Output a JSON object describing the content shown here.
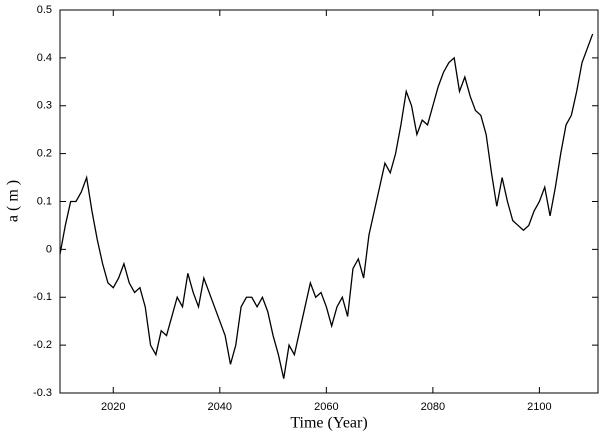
{
  "chart_data": {
    "type": "line",
    "x_label": "Time (Year)",
    "y_label": "a ( m )",
    "x": [
      2010,
      2011,
      2012,
      2013,
      2014,
      2015,
      2016,
      2017,
      2018,
      2019,
      2020,
      2021,
      2022,
      2023,
      2024,
      2025,
      2026,
      2027,
      2028,
      2029,
      2030,
      2031,
      2032,
      2033,
      2034,
      2035,
      2036,
      2037,
      2038,
      2039,
      2040,
      2041,
      2042,
      2043,
      2044,
      2045,
      2046,
      2047,
      2048,
      2049,
      2050,
      2051,
      2052,
      2053,
      2054,
      2055,
      2056,
      2057,
      2058,
      2059,
      2060,
      2061,
      2062,
      2063,
      2064,
      2065,
      2066,
      2067,
      2068,
      2069,
      2070,
      2071,
      2072,
      2073,
      2074,
      2075,
      2076,
      2077,
      2078,
      2079,
      2080,
      2081,
      2082,
      2083,
      2084,
      2085,
      2086,
      2087,
      2088,
      2089,
      2090,
      2091,
      2092,
      2093,
      2094,
      2095,
      2096,
      2097,
      2098,
      2099,
      2100,
      2101,
      2102,
      2103,
      2104,
      2105,
      2106,
      2107,
      2108,
      2109,
      2110
    ],
    "series": [
      {
        "color": "#000000",
        "values": [
          -0.01,
          0.05,
          0.1,
          0.1,
          0.12,
          0.15,
          0.08,
          0.02,
          -0.03,
          -0.07,
          -0.08,
          -0.06,
          -0.03,
          -0.07,
          -0.09,
          -0.08,
          -0.12,
          -0.2,
          -0.22,
          -0.17,
          -0.18,
          -0.14,
          -0.1,
          -0.12,
          -0.05,
          -0.09,
          -0.12,
          -0.06,
          -0.09,
          -0.12,
          -0.15,
          -0.18,
          -0.24,
          -0.2,
          -0.12,
          -0.1,
          -0.1,
          -0.12,
          -0.1,
          -0.13,
          -0.18,
          -0.22,
          -0.27,
          -0.2,
          -0.22,
          -0.17,
          -0.12,
          -0.07,
          -0.1,
          -0.09,
          -0.12,
          -0.16,
          -0.12,
          -0.1,
          -0.14,
          -0.04,
          -0.02,
          -0.06,
          0.03,
          0.08,
          0.13,
          0.18,
          0.16,
          0.2,
          0.26,
          0.33,
          0.3,
          0.24,
          0.27,
          0.26,
          0.3,
          0.34,
          0.37,
          0.39,
          0.4,
          0.33,
          0.36,
          0.32,
          0.29,
          0.28,
          0.24,
          0.16,
          0.09,
          0.15,
          0.1,
          0.06,
          0.05,
          0.04,
          0.05,
          0.08,
          0.1,
          0.13,
          0.07,
          0.13,
          0.2,
          0.26,
          0.28,
          0.33,
          0.39,
          0.42,
          0.45
        ]
      }
    ],
    "xlim": [
      2010,
      2111
    ],
    "ylim": [
      -0.3,
      0.5
    ],
    "xticks": [
      2020,
      2040,
      2060,
      2080,
      2100
    ],
    "yticks": [
      -0.3,
      -0.2,
      -0.1,
      0,
      0.1,
      0.2,
      0.3,
      0.4,
      0.5
    ]
  }
}
